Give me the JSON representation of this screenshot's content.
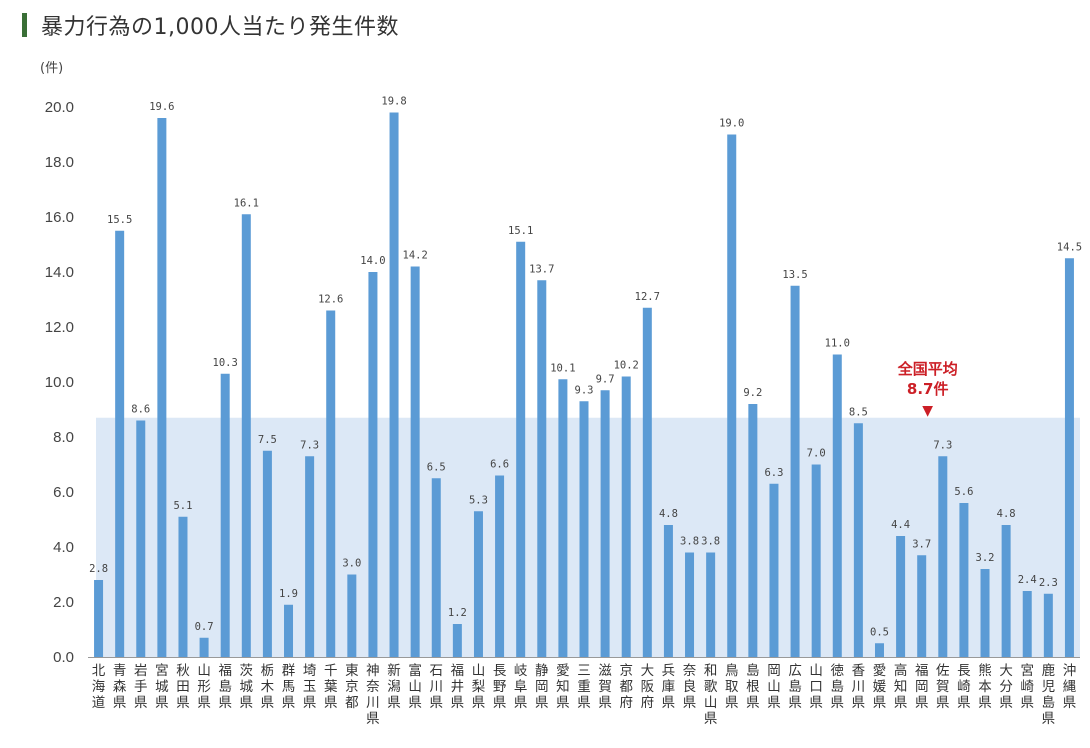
{
  "header": {
    "title": "暴力行為の1,000人当たり発生件数"
  },
  "colors": {
    "bar": "#5b9bd5",
    "avg_band": "#dce8f6",
    "accent": "#cc1f26",
    "title_bar": "#3a6f36"
  },
  "chart_data": {
    "type": "bar",
    "title": "暴力行為の1,000人当たり発生件数",
    "ylabel": "(件)",
    "ylim": [
      0,
      20
    ],
    "yticks": [
      "0.0",
      "2.0",
      "4.0",
      "6.0",
      "8.0",
      "10.0",
      "12.0",
      "14.0",
      "16.0",
      "18.0",
      "20.0"
    ],
    "categories": [
      "北海道",
      "青森県",
      "岩手県",
      "宮城県",
      "秋田県",
      "山形県",
      "福島県",
      "茨城県",
      "栃木県",
      "群馬県",
      "埼玉県",
      "千葉県",
      "東京都",
      "神奈川県",
      "新潟県",
      "富山県",
      "石川県",
      "福井県",
      "山梨県",
      "長野県",
      "岐阜県",
      "静岡県",
      "愛知県",
      "三重県",
      "滋賀県",
      "京都府",
      "大阪府",
      "兵庫県",
      "奈良県",
      "和歌山県",
      "鳥取県",
      "島根県",
      "岡山県",
      "広島県",
      "山口県",
      "徳島県",
      "香川県",
      "愛媛県",
      "高知県",
      "福岡県",
      "佐賀県",
      "長崎県",
      "熊本県",
      "大分県",
      "宮崎県",
      "鹿児島県",
      "沖縄県"
    ],
    "values": [
      2.8,
      15.5,
      8.6,
      19.6,
      5.1,
      0.7,
      10.3,
      16.1,
      7.5,
      1.9,
      7.3,
      12.6,
      3.0,
      14.0,
      19.8,
      14.2,
      6.5,
      1.2,
      5.3,
      6.6,
      15.1,
      13.7,
      10.1,
      9.3,
      9.7,
      10.2,
      12.7,
      4.8,
      3.8,
      3.8,
      19.0,
      9.2,
      6.3,
      13.5,
      7.0,
      11.0,
      8.5,
      0.5,
      4.4,
      3.7,
      7.3,
      5.6,
      3.2,
      4.8,
      2.4,
      2.3,
      14.5
    ],
    "value_labels": [
      "2.8",
      "15.5",
      "8.6",
      "19.6",
      "5.1",
      "0.7",
      "10.3",
      "16.1",
      "7.5",
      "1.9",
      "7.3",
      "12.6",
      "3.0",
      "14.0",
      "19.8",
      "14.2",
      "6.5",
      "1.2",
      "5.3",
      "6.6",
      "15.1",
      "13.7",
      "10.1",
      "9.3",
      "9.7",
      "10.2",
      "12.7",
      "4.8",
      "3.8",
      "3.8",
      "19.0",
      "9.2",
      "6.3",
      "13.5",
      "7.0",
      "11.0",
      "8.5",
      "0.5",
      "4.4",
      "3.7",
      "7.3",
      "5.6",
      "3.2",
      "4.8",
      "2.4",
      "2.3",
      "14.5"
    ],
    "average": {
      "value": 8.7,
      "label_line1": "全国平均",
      "label_line2": "8.7件",
      "pointer": "▼"
    }
  }
}
